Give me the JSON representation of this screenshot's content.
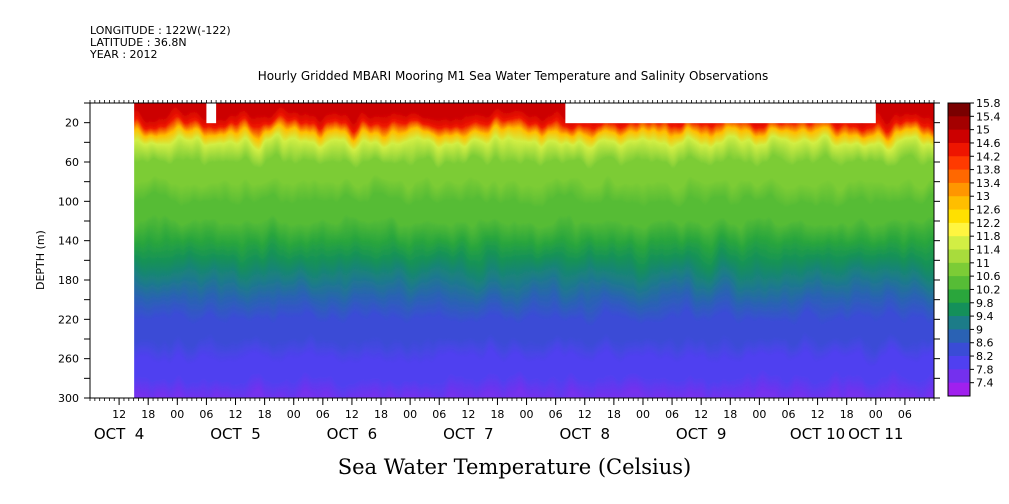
{
  "header": {
    "longitude": "LONGITUDE : 122W(-122)",
    "latitude": "LATITUDE : 36.8N",
    "year": "YEAR : 2012",
    "title": "Hourly Gridded MBARI Mooring M1 Sea Water Temperature and Salinity Observations"
  },
  "chart_data": {
    "type": "heatmap",
    "title": "Hourly Gridded MBARI Mooring M1 Sea Water Temperature and Salinity Observations",
    "xlabel": "Sea Water Temperature (Celsius)",
    "ylabel": "DEPTH (m)",
    "x_range": [
      "2012-10-04 06:00",
      "2012-10-11 12:00"
    ],
    "data_start": "2012-10-04 15:00",
    "y_range": [
      300,
      0
    ],
    "y_ticks": [
      20,
      60,
      100,
      140,
      180,
      220,
      260,
      300
    ],
    "x_hour_ticks": [
      {
        "t": "2012-10-04 12:00",
        "label": "12"
      },
      {
        "t": "2012-10-04 18:00",
        "label": "18"
      },
      {
        "t": "2012-10-05 00:00",
        "label": "00"
      },
      {
        "t": "2012-10-05 06:00",
        "label": "06"
      },
      {
        "t": "2012-10-05 12:00",
        "label": "12"
      },
      {
        "t": "2012-10-05 18:00",
        "label": "18"
      },
      {
        "t": "2012-10-06 00:00",
        "label": "00"
      },
      {
        "t": "2012-10-06 06:00",
        "label": "06"
      },
      {
        "t": "2012-10-06 12:00",
        "label": "12"
      },
      {
        "t": "2012-10-06 18:00",
        "label": "18"
      },
      {
        "t": "2012-10-07 00:00",
        "label": "00"
      },
      {
        "t": "2012-10-07 06:00",
        "label": "06"
      },
      {
        "t": "2012-10-07 12:00",
        "label": "12"
      },
      {
        "t": "2012-10-07 18:00",
        "label": "18"
      },
      {
        "t": "2012-10-08 00:00",
        "label": "00"
      },
      {
        "t": "2012-10-08 06:00",
        "label": "06"
      },
      {
        "t": "2012-10-08 12:00",
        "label": "12"
      },
      {
        "t": "2012-10-08 18:00",
        "label": "18"
      },
      {
        "t": "2012-10-09 00:00",
        "label": "00"
      },
      {
        "t": "2012-10-09 06:00",
        "label": "06"
      },
      {
        "t": "2012-10-09 12:00",
        "label": "12"
      },
      {
        "t": "2012-10-09 18:00",
        "label": "18"
      },
      {
        "t": "2012-10-10 00:00",
        "label": "00"
      },
      {
        "t": "2012-10-10 06:00",
        "label": "06"
      },
      {
        "t": "2012-10-10 12:00",
        "label": "12"
      },
      {
        "t": "2012-10-10 18:00",
        "label": "18"
      },
      {
        "t": "2012-10-11 00:00",
        "label": "00"
      },
      {
        "t": "2012-10-11 06:00",
        "label": "06"
      }
    ],
    "x_date_labels": [
      {
        "t": "2012-10-04 12:00",
        "label": "OCT  4"
      },
      {
        "t": "2012-10-05 12:00",
        "label": "OCT  5"
      },
      {
        "t": "2012-10-06 12:00",
        "label": "OCT  6"
      },
      {
        "t": "2012-10-07 12:00",
        "label": "OCT  7"
      },
      {
        "t": "2012-10-08 12:00",
        "label": "OCT  8"
      },
      {
        "t": "2012-10-09 12:00",
        "label": "OCT  9"
      },
      {
        "t": "2012-10-10 12:00",
        "label": "OCT 10"
      },
      {
        "t": "2012-10-11 00:00",
        "label": "OCT 11"
      }
    ],
    "missing_top_blocks": [
      {
        "from": "2012-10-05 06:00",
        "to": "2012-10-05 08:00",
        "depth_to": 20
      },
      {
        "from": "2012-10-08 08:00",
        "to": "2012-10-11 00:00",
        "depth_to": 20
      }
    ],
    "depth_levels": [
      10,
      20,
      30,
      40,
      60,
      80,
      100,
      120,
      140,
      160,
      180,
      200,
      220,
      240,
      260,
      280,
      300
    ],
    "temperature_profile": [
      14.9,
      14.6,
      13.0,
      11.6,
      11.0,
      10.8,
      10.6,
      10.3,
      10.1,
      9.8,
      9.4,
      8.9,
      8.6,
      8.4,
      8.2,
      7.9,
      7.6
    ],
    "colorbar": {
      "levels": [
        "15.8",
        "15.4",
        "15",
        "14.6",
        "14.2",
        "13.8",
        "13.4",
        "13",
        "12.6",
        "12.2",
        "11.8",
        "11.4",
        "11",
        "10.6",
        "10.2",
        "9.8",
        "9.4",
        "9",
        "8.6",
        "8.2",
        "7.8",
        "7.4"
      ],
      "colors": [
        "#7a0000",
        "#a40000",
        "#cc0000",
        "#ee1500",
        "#ff3a00",
        "#ff6800",
        "#ff9600",
        "#ffbe00",
        "#ffe000",
        "#fff540",
        "#d2ee44",
        "#a8dc3c",
        "#7ccc36",
        "#56bc36",
        "#2aa63c",
        "#14905a",
        "#1c7c88",
        "#2a62b4",
        "#3a4cd6",
        "#5040f0",
        "#7430ee",
        "#a020ee"
      ]
    }
  }
}
